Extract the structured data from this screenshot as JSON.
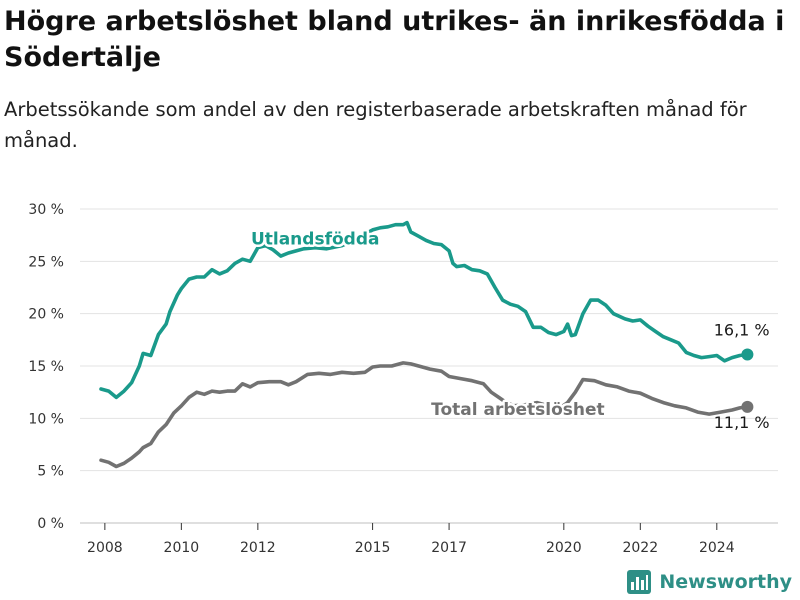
{
  "title": "Högre arbetslöshet bland utrikes- än inrikesfödda i Södertälje",
  "subtitle": "Arbetssökande som andel av den registerbaserade arbetskraften månad för månad.",
  "brand": "Newsworthy",
  "colors": {
    "foreign_born": "#1a9a8b",
    "total": "#727272",
    "grid": "#e3e3e3",
    "brand": "#2e8f86"
  },
  "chart_data": {
    "type": "line",
    "x_unit": "year (decimal)",
    "ylim": [
      0,
      30
    ],
    "y_ticks": [
      0,
      5,
      10,
      15,
      20,
      25,
      30
    ],
    "y_tick_labels": [
      "0 %",
      "5 %",
      "10 %",
      "15 %",
      "20 %",
      "25 %",
      "30 %"
    ],
    "x_ticks": [
      2008,
      2010,
      2012,
      2015,
      2017,
      2020,
      2022,
      2024
    ],
    "x_tick_labels": [
      "2008",
      "2010",
      "2012",
      "2015",
      "2017",
      "2020",
      "2022",
      "2024"
    ],
    "grid": true,
    "series": [
      {
        "name": "Utlandsfödda",
        "key": "foreign_born",
        "end_label": "16,1 %",
        "points": [
          [
            2007.9,
            12.8
          ],
          [
            2008.1,
            12.6
          ],
          [
            2008.3,
            12.0
          ],
          [
            2008.5,
            12.6
          ],
          [
            2008.7,
            13.4
          ],
          [
            2008.9,
            15.0
          ],
          [
            2009.0,
            16.2
          ],
          [
            2009.2,
            16.0
          ],
          [
            2009.4,
            18.0
          ],
          [
            2009.6,
            19.0
          ],
          [
            2009.7,
            20.2
          ],
          [
            2009.9,
            21.8
          ],
          [
            2010.0,
            22.4
          ],
          [
            2010.2,
            23.3
          ],
          [
            2010.4,
            23.5
          ],
          [
            2010.6,
            23.5
          ],
          [
            2010.8,
            24.2
          ],
          [
            2011.0,
            23.8
          ],
          [
            2011.2,
            24.1
          ],
          [
            2011.4,
            24.8
          ],
          [
            2011.6,
            25.2
          ],
          [
            2011.8,
            25.0
          ],
          [
            2012.0,
            26.3
          ],
          [
            2012.2,
            26.5
          ],
          [
            2012.4,
            26.1
          ],
          [
            2012.6,
            25.5
          ],
          [
            2012.8,
            25.8
          ],
          [
            2013.0,
            26.0
          ],
          [
            2013.2,
            26.2
          ],
          [
            2013.5,
            26.3
          ],
          [
            2013.8,
            26.2
          ],
          [
            2014.2,
            26.5
          ],
          [
            2014.5,
            27.0
          ],
          [
            2014.8,
            27.6
          ],
          [
            2015.0,
            28.0
          ],
          [
            2015.2,
            28.2
          ],
          [
            2015.4,
            28.3
          ],
          [
            2015.6,
            28.5
          ],
          [
            2015.8,
            28.5
          ],
          [
            2015.9,
            28.7
          ],
          [
            2016.0,
            27.8
          ],
          [
            2016.2,
            27.4
          ],
          [
            2016.4,
            27.0
          ],
          [
            2016.6,
            26.7
          ],
          [
            2016.8,
            26.6
          ],
          [
            2017.0,
            26.0
          ],
          [
            2017.1,
            24.8
          ],
          [
            2017.2,
            24.5
          ],
          [
            2017.4,
            24.6
          ],
          [
            2017.6,
            24.2
          ],
          [
            2017.8,
            24.1
          ],
          [
            2018.0,
            23.8
          ],
          [
            2018.2,
            22.5
          ],
          [
            2018.4,
            21.3
          ],
          [
            2018.6,
            20.9
          ],
          [
            2018.8,
            20.7
          ],
          [
            2019.0,
            20.2
          ],
          [
            2019.2,
            18.7
          ],
          [
            2019.4,
            18.7
          ],
          [
            2019.6,
            18.2
          ],
          [
            2019.8,
            18.0
          ],
          [
            2020.0,
            18.3
          ],
          [
            2020.1,
            19.0
          ],
          [
            2020.2,
            17.9
          ],
          [
            2020.3,
            18.0
          ],
          [
            2020.5,
            20.0
          ],
          [
            2020.7,
            21.3
          ],
          [
            2020.9,
            21.3
          ],
          [
            2021.1,
            20.8
          ],
          [
            2021.3,
            20.0
          ],
          [
            2021.6,
            19.5
          ],
          [
            2021.8,
            19.3
          ],
          [
            2022.0,
            19.4
          ],
          [
            2022.2,
            18.8
          ],
          [
            2022.4,
            18.3
          ],
          [
            2022.6,
            17.8
          ],
          [
            2022.8,
            17.5
          ],
          [
            2023.0,
            17.2
          ],
          [
            2023.2,
            16.3
          ],
          [
            2023.4,
            16.0
          ],
          [
            2023.6,
            15.8
          ],
          [
            2023.8,
            15.9
          ],
          [
            2024.0,
            16.0
          ],
          [
            2024.2,
            15.5
          ],
          [
            2024.4,
            15.8
          ],
          [
            2024.6,
            16.0
          ],
          [
            2024.8,
            16.1
          ]
        ]
      },
      {
        "name": "Total arbetslöshet",
        "key": "total",
        "end_label": "11,1 %",
        "points": [
          [
            2007.9,
            6.0
          ],
          [
            2008.1,
            5.8
          ],
          [
            2008.3,
            5.4
          ],
          [
            2008.5,
            5.7
          ],
          [
            2008.7,
            6.2
          ],
          [
            2008.9,
            6.8
          ],
          [
            2009.0,
            7.2
          ],
          [
            2009.2,
            7.6
          ],
          [
            2009.4,
            8.7
          ],
          [
            2009.6,
            9.4
          ],
          [
            2009.8,
            10.5
          ],
          [
            2010.0,
            11.2
          ],
          [
            2010.2,
            12.0
          ],
          [
            2010.4,
            12.5
          ],
          [
            2010.6,
            12.3
          ],
          [
            2010.8,
            12.6
          ],
          [
            2011.0,
            12.5
          ],
          [
            2011.2,
            12.6
          ],
          [
            2011.4,
            12.6
          ],
          [
            2011.6,
            13.3
          ],
          [
            2011.8,
            13.0
          ],
          [
            2012.0,
            13.4
          ],
          [
            2012.3,
            13.5
          ],
          [
            2012.6,
            13.5
          ],
          [
            2012.8,
            13.2
          ],
          [
            2013.0,
            13.5
          ],
          [
            2013.3,
            14.2
          ],
          [
            2013.6,
            14.3
          ],
          [
            2013.9,
            14.2
          ],
          [
            2014.2,
            14.4
          ],
          [
            2014.5,
            14.3
          ],
          [
            2014.8,
            14.4
          ],
          [
            2015.0,
            14.9
          ],
          [
            2015.2,
            15.0
          ],
          [
            2015.5,
            15.0
          ],
          [
            2015.8,
            15.3
          ],
          [
            2016.0,
            15.2
          ],
          [
            2016.3,
            14.9
          ],
          [
            2016.5,
            14.7
          ],
          [
            2016.8,
            14.5
          ],
          [
            2017.0,
            14.0
          ],
          [
            2017.3,
            13.8
          ],
          [
            2017.6,
            13.6
          ],
          [
            2017.9,
            13.3
          ],
          [
            2018.1,
            12.5
          ],
          [
            2018.3,
            12.0
          ],
          [
            2018.5,
            11.5
          ],
          [
            2018.7,
            11.2
          ],
          [
            2019.0,
            11.3
          ],
          [
            2019.3,
            11.5
          ],
          [
            2019.6,
            11.2
          ],
          [
            2019.9,
            11.0
          ],
          [
            2020.1,
            11.5
          ],
          [
            2020.3,
            12.5
          ],
          [
            2020.5,
            13.7
          ],
          [
            2020.8,
            13.6
          ],
          [
            2021.1,
            13.2
          ],
          [
            2021.4,
            13.0
          ],
          [
            2021.7,
            12.6
          ],
          [
            2022.0,
            12.4
          ],
          [
            2022.3,
            11.9
          ],
          [
            2022.6,
            11.5
          ],
          [
            2022.9,
            11.2
          ],
          [
            2023.2,
            11.0
          ],
          [
            2023.5,
            10.6
          ],
          [
            2023.8,
            10.4
          ],
          [
            2024.1,
            10.6
          ],
          [
            2024.4,
            10.8
          ],
          [
            2024.6,
            11.0
          ],
          [
            2024.8,
            11.1
          ]
        ]
      }
    ]
  }
}
